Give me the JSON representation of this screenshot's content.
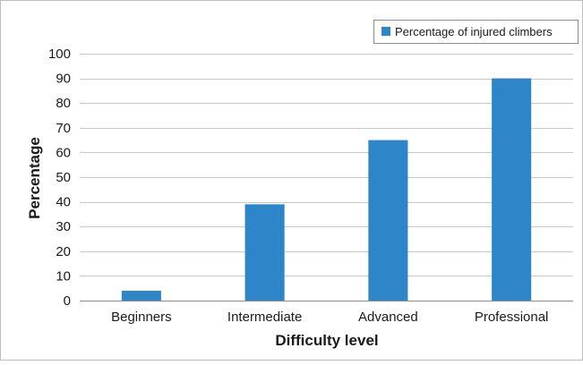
{
  "chart_data": {
    "type": "bar",
    "categories": [
      "Beginners",
      "Intermediate",
      "Advanced",
      "Professional"
    ],
    "series": [
      {
        "name": "Percentage of injured climbers",
        "values": [
          4,
          39,
          65,
          90
        ],
        "color": "#2e86c9"
      }
    ],
    "xlabel": "Difficulty level",
    "ylabel": "Percentage",
    "ylim": [
      0,
      100
    ],
    "yticks": [
      0,
      10,
      20,
      30,
      40,
      50,
      60,
      70,
      80,
      90,
      100
    ],
    "grid": true,
    "legend_position": "top-right",
    "colors": {
      "bar": "#2e86c9",
      "grid": "#c8c8c8",
      "axis": "#8c8c8c",
      "frame": "#bdbdbd"
    }
  }
}
